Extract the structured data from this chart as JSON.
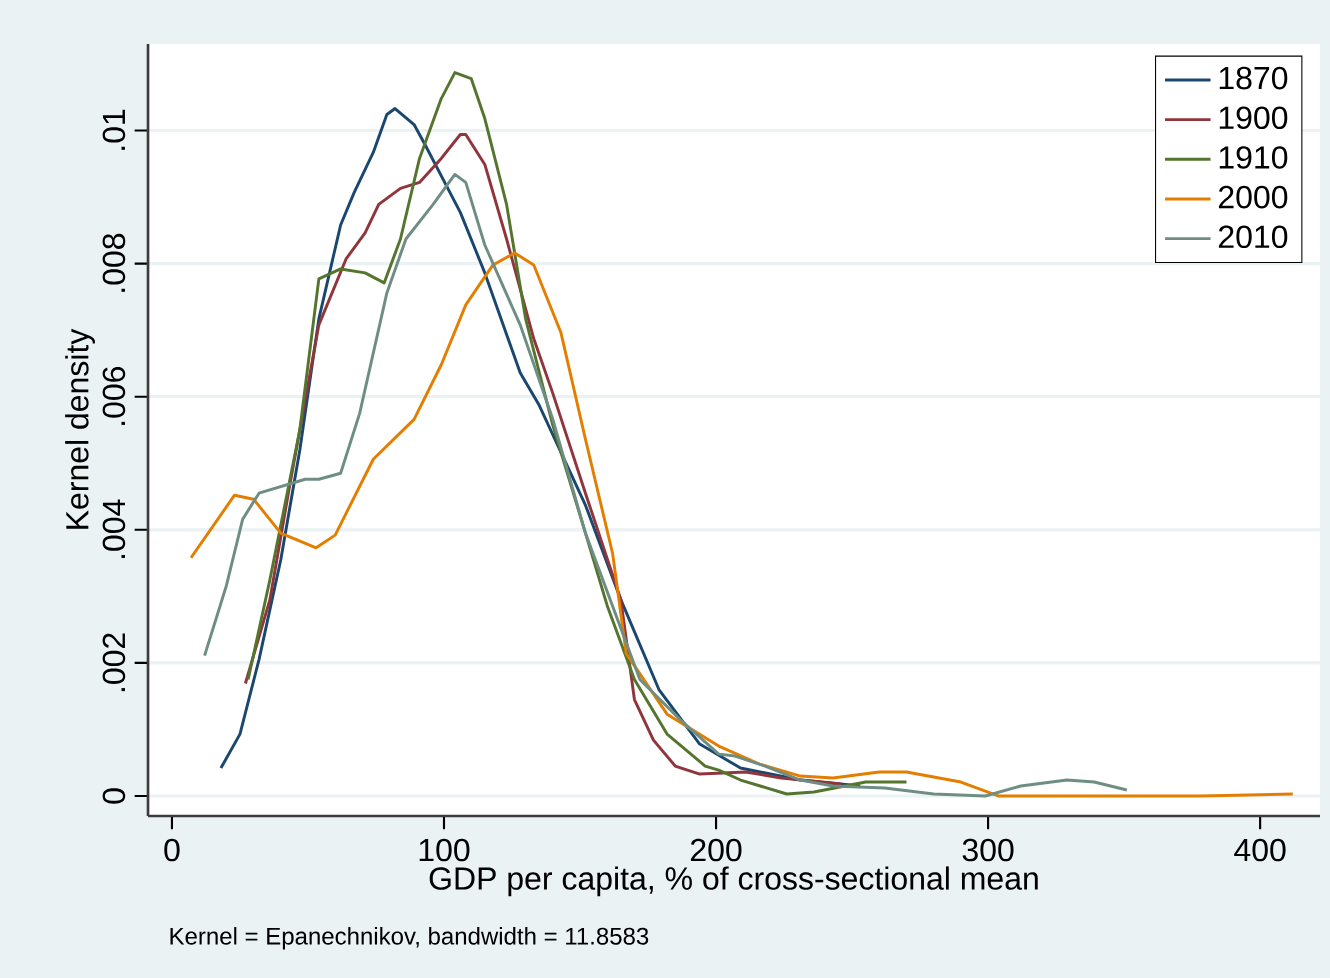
{
  "chart_data": {
    "type": "line",
    "xlabel": "GDP per capita, % of cross-sectional mean",
    "ylabel": "Kernel density",
    "xlim": [
      -8.8,
      422
    ],
    "ylim": [
      -0.0003,
      0.0113
    ],
    "xticks": [
      0,
      100,
      200,
      300,
      400
    ],
    "yticks": [
      0,
      {
        "value": 0.002,
        "label": ".002"
      },
      {
        "value": 0.004,
        "label": ".004"
      },
      {
        "value": 0.006,
        "label": ".006"
      },
      {
        "value": 0.008,
        "label": ".008"
      },
      {
        "value": 0.01,
        "label": ".01"
      }
    ],
    "grid": "y",
    "legend": "top right",
    "line_style": "solid",
    "annotations": [
      "Kernel = Epanechnikov, bandwidth = 11.8583"
    ],
    "series": [
      {
        "name": "1870",
        "color": "#1a476f",
        "x": [
          18,
          25,
          32,
          40,
          47,
          54,
          62,
          67,
          74,
          79,
          82,
          89,
          93,
          106,
          115,
          128,
          135,
          152,
          165,
          179,
          194,
          209,
          231,
          253
        ],
        "values": [
          0.00042,
          0.00093,
          0.00205,
          0.00355,
          0.0052,
          0.00717,
          0.00858,
          0.00907,
          0.00967,
          0.01024,
          0.01033,
          0.01009,
          0.00979,
          0.00877,
          0.00786,
          0.00636,
          0.00587,
          0.00437,
          0.00295,
          0.0016,
          0.00078,
          0.00042,
          0.00024,
          0.00015
        ]
      },
      {
        "name": "1900",
        "color": "#90353b",
        "x": [
          27,
          36,
          43,
          54,
          64,
          71,
          76,
          84,
          91,
          99,
          106,
          108,
          115,
          123,
          133,
          140,
          152,
          165,
          170,
          177,
          185,
          194,
          211,
          224,
          246
        ],
        "values": [
          0.00169,
          0.00295,
          0.0046,
          0.00708,
          0.00807,
          0.00846,
          0.00889,
          0.00913,
          0.00922,
          0.00958,
          0.00994,
          0.00994,
          0.00949,
          0.00837,
          0.00687,
          0.00605,
          0.00455,
          0.00295,
          0.00145,
          0.00084,
          0.00045,
          0.00033,
          0.00036,
          0.00027,
          0.00018
        ]
      },
      {
        "name": "1910",
        "color": "#55752f",
        "x": [
          28,
          36,
          47,
          54,
          62,
          71,
          78,
          84,
          91,
          99,
          104,
          110,
          115,
          123,
          130,
          140,
          152,
          160,
          170,
          182,
          196,
          201,
          209,
          226,
          236,
          255,
          270
        ],
        "values": [
          0.00175,
          0.00325,
          0.0055,
          0.00777,
          0.00792,
          0.00786,
          0.00771,
          0.00837,
          0.00958,
          0.01048,
          0.01087,
          0.01078,
          0.01018,
          0.00889,
          0.00717,
          0.00557,
          0.00395,
          0.00286,
          0.00175,
          0.00093,
          0.00045,
          0.00039,
          0.00024,
          3e-05,
          6e-05,
          0.00021,
          0.00021
        ]
      },
      {
        "name": "2000",
        "color": "#e37e00",
        "x": [
          7,
          23,
          30,
          40,
          53,
          60,
          74,
          89,
          99,
          108,
          118,
          126,
          133,
          143,
          152,
          162,
          167,
          182,
          201,
          216,
          231,
          243,
          260,
          270,
          290,
          304,
          378,
          412
        ],
        "values": [
          0.00358,
          0.00452,
          0.00446,
          0.00395,
          0.00373,
          0.00392,
          0.00506,
          0.00566,
          0.00648,
          0.00738,
          0.00798,
          0.00816,
          0.00798,
          0.00696,
          0.00536,
          0.00364,
          0.00214,
          0.00123,
          0.00075,
          0.00048,
          0.0003,
          0.00027,
          0.00036,
          0.00036,
          0.00021,
          0.0,
          0.0,
          3e-05
        ]
      },
      {
        "name": "2010",
        "color": "#6e8e84",
        "x": [
          12,
          20,
          26,
          32,
          49,
          54,
          62,
          69,
          79,
          86,
          96,
          104,
          108,
          115,
          128,
          140,
          152,
          172,
          187,
          201,
          207,
          218,
          231,
          243,
          262,
          280,
          299,
          312,
          329,
          339,
          351
        ],
        "values": [
          0.00211,
          0.00316,
          0.00416,
          0.00455,
          0.00476,
          0.00476,
          0.00485,
          0.00575,
          0.00756,
          0.00837,
          0.00889,
          0.00934,
          0.00922,
          0.00828,
          0.00708,
          0.00566,
          0.00395,
          0.00175,
          0.00114,
          0.00063,
          0.0006,
          0.00045,
          0.00024,
          0.00015,
          0.00012,
          3e-05,
          0.0,
          0.00015,
          0.00024,
          0.00021,
          9e-05
        ]
      }
    ]
  }
}
